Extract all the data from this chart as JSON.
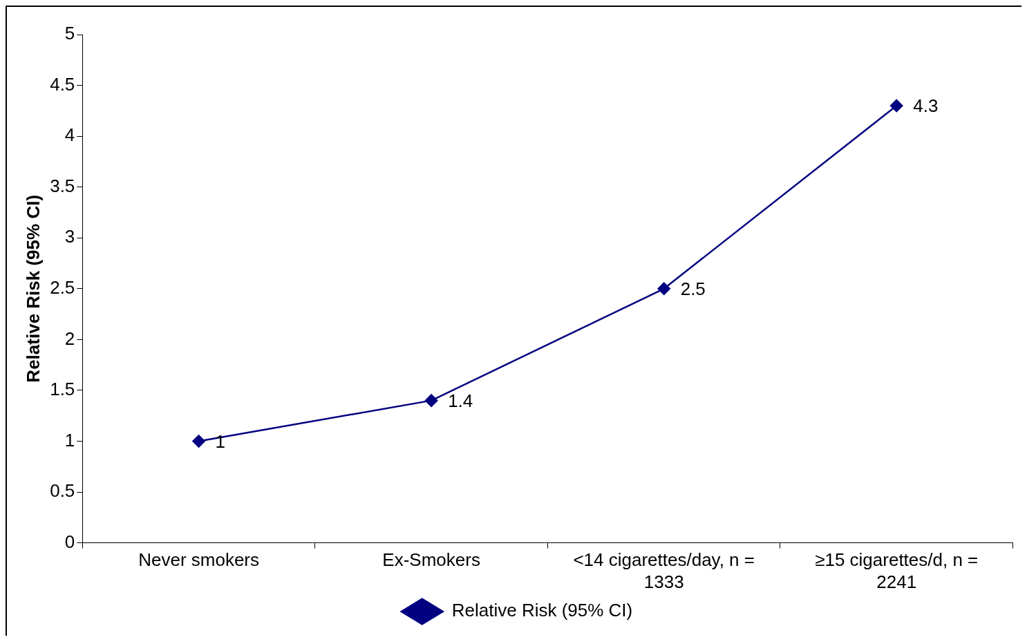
{
  "chart_data": {
    "type": "line",
    "ylabel": "Relative Risk (95% CI)",
    "categories": [
      "Never smokers",
      "Ex-Smokers",
      "<14 cigarettes/day, n = 1333",
      "≥15 cigarettes/d, n = 2241"
    ],
    "series": [
      {
        "name": "Relative Risk (95% CI)",
        "color": "#000080",
        "values": [
          1,
          1.4,
          2.5,
          4.3
        ]
      }
    ],
    "ylim": [
      0,
      5
    ],
    "yticks": [
      0,
      0.5,
      1,
      1.5,
      2,
      2.5,
      3,
      3.5,
      4,
      4.5,
      5
    ],
    "data_labels": true,
    "legend": "bottom",
    "marker": "diamond",
    "line_style": "solid"
  }
}
